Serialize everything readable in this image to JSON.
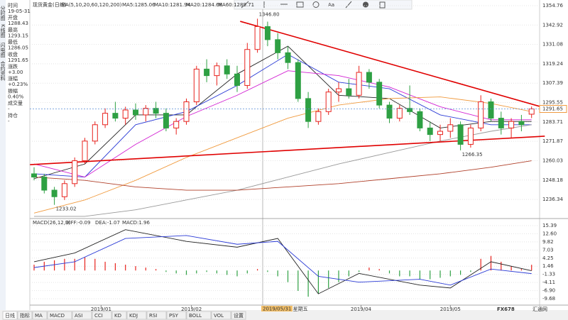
{
  "tabs": [
    "分时图",
    "K线图",
    "闪电图",
    "合约资料"
  ],
  "info": [
    {
      "label": "时间",
      "value": "19-05-31"
    },
    {
      "label": "开盘",
      "value": "1288.43"
    },
    {
      "label": "最高",
      "value": "1293.15"
    },
    {
      "label": "最低",
      "value": "1286.05"
    },
    {
      "label": "收盘",
      "value": "1291.65"
    },
    {
      "label": "涨跌",
      "value": "+3.00"
    },
    {
      "label": "涨幅",
      "value": "+0.23%"
    },
    {
      "label": "振幅",
      "value": "0.40%"
    },
    {
      "label": "成交量",
      "value": "-"
    },
    {
      "label": "持仓",
      "value": "-"
    }
  ],
  "toolbar": {
    "text_tool": "Aa"
  },
  "chart_data": [
    {
      "type": "candlestick",
      "title": "现货黄金(日线)",
      "indicator": "MA(5,10,20,60,120,200)",
      "ohlc": [
        [
          1252,
          1256,
          1248,
          1250
        ],
        [
          1250,
          1252,
          1240,
          1242
        ],
        [
          1242,
          1244,
          1233.02,
          1238
        ],
        [
          1238,
          1248,
          1236,
          1246
        ],
        [
          1246,
          1262,
          1244,
          1260
        ],
        [
          1260,
          1274,
          1258,
          1272
        ],
        [
          1272,
          1284,
          1270,
          1282
        ],
        [
          1282,
          1292,
          1280,
          1289
        ],
        [
          1289,
          1296,
          1284,
          1286
        ],
        [
          1286,
          1293,
          1282,
          1291
        ],
        [
          1291,
          1295,
          1285,
          1288
        ],
        [
          1288,
          1294,
          1284,
          1292
        ],
        [
          1292,
          1296,
          1286,
          1289
        ],
        [
          1289,
          1292,
          1278,
          1280
        ],
        [
          1280,
          1286,
          1276,
          1284
        ],
        [
          1284,
          1298,
          1282,
          1296
        ],
        [
          1296,
          1318,
          1294,
          1316
        ],
        [
          1316,
          1322,
          1308,
          1312
        ],
        [
          1312,
          1320,
          1306,
          1318
        ],
        [
          1318,
          1322,
          1310,
          1313
        ],
        [
          1313,
          1318,
          1302,
          1306
        ],
        [
          1306,
          1332,
          1304,
          1328
        ],
        [
          1328,
          1346.8,
          1326,
          1342
        ],
        [
          1342,
          1345,
          1330,
          1334
        ],
        [
          1334,
          1338,
          1322,
          1326
        ],
        [
          1326,
          1330,
          1316,
          1320
        ],
        [
          1320,
          1322,
          1296,
          1298
        ],
        [
          1298,
          1302,
          1280,
          1284
        ],
        [
          1284,
          1292,
          1282,
          1290
        ],
        [
          1290,
          1304,
          1288,
          1302
        ],
        [
          1302,
          1308,
          1296,
          1304
        ],
        [
          1304,
          1310,
          1298,
          1300
        ],
        [
          1300,
          1318,
          1298,
          1314
        ],
        [
          1314,
          1316,
          1304,
          1308
        ],
        [
          1308,
          1310,
          1292,
          1294
        ],
        [
          1294,
          1296,
          1283,
          1286
        ],
        [
          1286,
          1294,
          1284,
          1292
        ],
        [
          1292,
          1306,
          1288,
          1290
        ],
        [
          1290,
          1292,
          1278,
          1280
        ],
        [
          1280,
          1284,
          1272,
          1276
        ],
        [
          1276,
          1282,
          1272,
          1278
        ],
        [
          1278,
          1286,
          1274,
          1282
        ],
        [
          1282,
          1284,
          1266.35,
          1270
        ],
        [
          1270,
          1282,
          1268,
          1280
        ],
        [
          1280,
          1300,
          1278,
          1296
        ],
        [
          1296,
          1298,
          1284,
          1286
        ],
        [
          1286,
          1290,
          1276,
          1280
        ],
        [
          1280,
          1286,
          1274,
          1284
        ],
        [
          1284,
          1288,
          1278,
          1282
        ],
        [
          1288.43,
          1293.15,
          1286.05,
          1291.65
        ]
      ],
      "up_color": "#e8231e",
      "down_color": "#2ea043",
      "ylim": [
        1225.96,
        1356.93
      ],
      "yticks": [
        1354.76,
        1342.92,
        1331.08,
        1319.24,
        1307.39,
        1295.55,
        1283.71,
        1271.87,
        1260.03,
        1248.18,
        1236.34
      ],
      "xticks": [
        {
          "value": 6.6,
          "label": "2019/01"
        },
        {
          "value": 15.5,
          "label": "2019/02"
        },
        {
          "value": 32.2,
          "label": "2019/04"
        },
        {
          "value": 41,
          "label": "2019/05"
        }
      ],
      "series": [
        {
          "name": "MA5:1285.06",
          "color": "#222222",
          "x": [
            0,
            5,
            10,
            15,
            20,
            25,
            30,
            35,
            40,
            45,
            49
          ],
          "values": [
            1249,
            1258,
            1288,
            1288,
            1313,
            1330,
            1300,
            1298,
            1280,
            1284,
            1284
          ]
        },
        {
          "name": "MA10:1281.94",
          "color": "#2b3bd6",
          "x": [
            0,
            5,
            10,
            15,
            20,
            25,
            30,
            35,
            40,
            45,
            49
          ],
          "values": [
            1252,
            1250,
            1282,
            1290,
            1306,
            1325,
            1308,
            1304,
            1288,
            1282,
            1282
          ]
        },
        {
          "name": "MA20:1284.68",
          "color": "#d21fd2",
          "x": [
            0,
            5,
            10,
            15,
            20,
            25,
            30,
            35,
            40,
            45,
            49
          ],
          "values": [
            1258,
            1250,
            1270,
            1287,
            1300,
            1315,
            1312,
            1305,
            1293,
            1285,
            1285
          ]
        },
        {
          "name": "MA60:1289.71",
          "color": "#f09a3e",
          "x": [
            0,
            5,
            10,
            15,
            20,
            25,
            30,
            35,
            40,
            45,
            49
          ],
          "values": [
            1228,
            1236,
            1248,
            1262,
            1274,
            1286,
            1294,
            1298,
            1299,
            1295,
            1290
          ]
        },
        {
          "color": "#999999",
          "x": [
            0,
            5,
            10,
            15,
            20,
            25,
            30,
            35,
            40,
            45,
            49
          ],
          "values": [
            1226,
            1226,
            1230,
            1236,
            1242,
            1250,
            1258,
            1265,
            1272,
            1278,
            1282
          ]
        },
        {
          "color": "#b0402a",
          "x": [
            0,
            5,
            10,
            15,
            20,
            25,
            30,
            35,
            40,
            45,
            49
          ],
          "values": [
            1250,
            1248,
            1244,
            1242,
            1242,
            1244,
            1246,
            1249,
            1252,
            1256,
            1260
          ]
        }
      ],
      "trendlines": [
        {
          "color": "#e00000",
          "x": [
            20.3,
            49.8
          ],
          "values": [
            1345.2,
            1293.2
          ]
        },
        {
          "color": "#e00000",
          "x": [
            -0.4,
            50.3
          ],
          "values": [
            1257.6,
            1275
          ]
        }
      ],
      "annotations": [
        {
          "value": 1346.8,
          "label": "1346.80"
        },
        {
          "value": 1266.35,
          "label": "1266.35"
        },
        {
          "value": 1233.02,
          "label": "1233.02"
        }
      ],
      "crosshair_label": "2019/05/31 星期五"
    },
    {
      "type": "macd",
      "title": "MACD(26,12,9)",
      "histogram": {
        "name": "MACD:1.96",
        "values": [
          2,
          3,
          3.5,
          4,
          4,
          4.5,
          4,
          3,
          2.5,
          2,
          1.5,
          1,
          0.5,
          -0.5,
          -1,
          -1.5,
          -1,
          -0.5,
          -1,
          -1.5,
          -2,
          -1,
          0.5,
          -0.5,
          -2,
          -4,
          -7,
          -9,
          -8,
          -6,
          -4,
          -2,
          -0.5,
          1,
          0.5,
          -1,
          -2,
          -2,
          -3,
          -3,
          -2.5,
          -2,
          -1.5,
          -0.5,
          4,
          5,
          3,
          1.5,
          0.5,
          1.96
        ]
      },
      "series": [
        {
          "name": "DIFF:-0.09",
          "color": "#222222",
          "x": [
            0,
            4,
            9,
            15,
            20,
            24,
            28,
            32,
            38,
            41,
            45,
            49
          ],
          "values": [
            3,
            6,
            14,
            10,
            8,
            11,
            -8,
            -1,
            -5,
            -6,
            3,
            -0.09
          ]
        },
        {
          "name": "DEA:-1.07",
          "color": "#2b3bd6",
          "x": [
            0,
            4,
            9,
            15,
            20,
            24,
            28,
            32,
            38,
            41,
            45,
            49
          ],
          "values": [
            1,
            3,
            11,
            12,
            9,
            10,
            -2,
            -4,
            -3,
            -5,
            0.5,
            -1.07
          ]
        }
      ],
      "ylim": [
        -11.14,
        16.85
      ],
      "yticks": [
        15.39,
        {
          "value": 12.6,
          "label": "12.60"
        },
        9.82,
        7.03,
        4.25,
        1.46,
        -1.33,
        -4.11,
        {
          "value": -6.9,
          "label": "-6.90"
        },
        -9.68
      ]
    }
  ],
  "bottom_tabs": [
    "日线",
    "指标",
    "MA",
    "MACD",
    "ASI",
    "CCI",
    "KD",
    "KDJ",
    "RSI",
    "PSY",
    "BOLL",
    "VOL",
    "设置"
  ],
  "watermark": "FX678",
  "watermark2": "汇通网"
}
